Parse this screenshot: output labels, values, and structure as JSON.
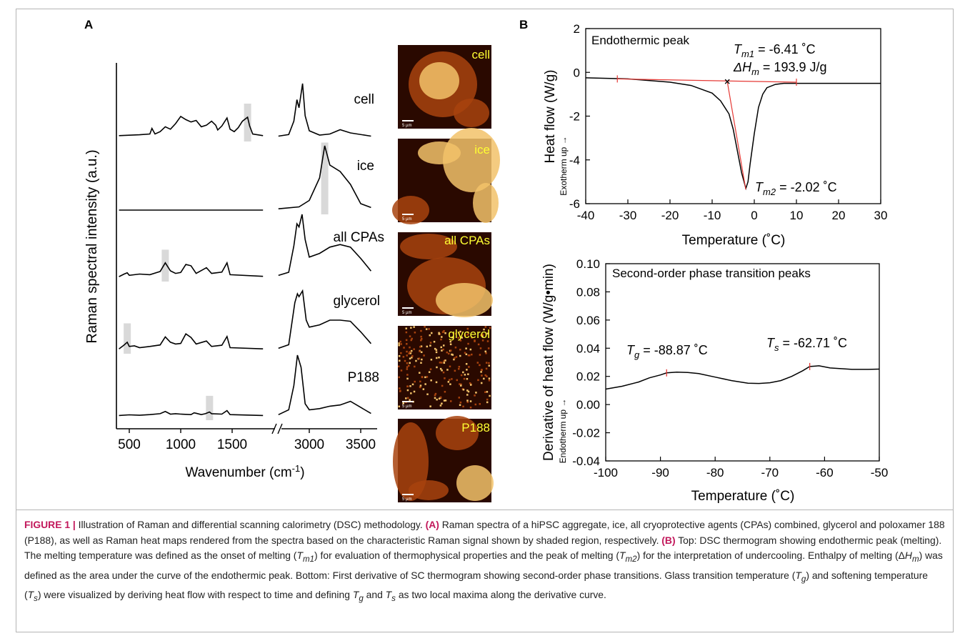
{
  "panel_a_label": "A",
  "panel_b_label": "B",
  "raman": {
    "ylabel": "Raman spectral intensity (a.u.)",
    "xlabel": "Wavenumber (cm",
    "xlabel_sup": "-1",
    "xlabel_close": ")",
    "ticks_left": [
      "500",
      "1000",
      "1500"
    ],
    "ticks_right": [
      "3000",
      "3500"
    ],
    "scale_bar_text": "5 µm",
    "heatmap_colors": {
      "dark": "#2a0900",
      "mid": "#a8430e",
      "bright": "#f2c26a",
      "label": "#ffff33"
    },
    "spectra": [
      {
        "label": "cell",
        "left": [
          [
            400,
            4
          ],
          [
            500,
            5
          ],
          [
            600,
            6
          ],
          [
            700,
            8
          ],
          [
            720,
            22
          ],
          [
            750,
            8
          ],
          [
            800,
            14
          ],
          [
            850,
            26
          ],
          [
            900,
            20
          ],
          [
            950,
            34
          ],
          [
            1000,
            52
          ],
          [
            1050,
            44
          ],
          [
            1100,
            38
          ],
          [
            1150,
            42
          ],
          [
            1200,
            26
          ],
          [
            1250,
            30
          ],
          [
            1300,
            40
          ],
          [
            1340,
            30
          ],
          [
            1360,
            18
          ],
          [
            1400,
            28
          ],
          [
            1450,
            48
          ],
          [
            1480,
            20
          ],
          [
            1520,
            14
          ],
          [
            1560,
            24
          ],
          [
            1600,
            40
          ],
          [
            1650,
            50
          ],
          [
            1670,
            28
          ],
          [
            1700,
            8
          ],
          [
            1800,
            4
          ]
        ],
        "right": [
          [
            2700,
            2
          ],
          [
            2800,
            5
          ],
          [
            2850,
            30
          ],
          [
            2880,
            70
          ],
          [
            2900,
            55
          ],
          [
            2935,
            100
          ],
          [
            2960,
            40
          ],
          [
            3000,
            12
          ],
          [
            3100,
            4
          ],
          [
            3200,
            6
          ],
          [
            3300,
            14
          ],
          [
            3400,
            8
          ],
          [
            3600,
            2
          ]
        ]
      },
      {
        "label": "ice",
        "left": [
          [
            400,
            2
          ],
          [
            1800,
            2
          ]
        ],
        "right": [
          [
            2700,
            2
          ],
          [
            2900,
            5
          ],
          [
            3000,
            15
          ],
          [
            3100,
            50
          ],
          [
            3150,
            100
          ],
          [
            3200,
            70
          ],
          [
            3300,
            60
          ],
          [
            3400,
            40
          ],
          [
            3500,
            10
          ],
          [
            3600,
            4
          ]
        ]
      },
      {
        "label": "all CPAs",
        "left": [
          [
            400,
            2
          ],
          [
            450,
            10
          ],
          [
            480,
            14
          ],
          [
            500,
            6
          ],
          [
            600,
            10
          ],
          [
            700,
            8
          ],
          [
            800,
            18
          ],
          [
            850,
            45
          ],
          [
            900,
            20
          ],
          [
            950,
            12
          ],
          [
            1000,
            15
          ],
          [
            1050,
            40
          ],
          [
            1100,
            36
          ],
          [
            1150,
            12
          ],
          [
            1250,
            30
          ],
          [
            1300,
            12
          ],
          [
            1400,
            16
          ],
          [
            1450,
            45
          ],
          [
            1480,
            8
          ],
          [
            1800,
            3
          ]
        ],
        "right": [
          [
            2700,
            3
          ],
          [
            2800,
            8
          ],
          [
            2850,
            50
          ],
          [
            2880,
            85
          ],
          [
            2900,
            80
          ],
          [
            2930,
            100
          ],
          [
            2960,
            60
          ],
          [
            3000,
            32
          ],
          [
            3100,
            38
          ],
          [
            3200,
            48
          ],
          [
            3300,
            52
          ],
          [
            3400,
            48
          ],
          [
            3500,
            30
          ],
          [
            3600,
            10
          ]
        ]
      },
      {
        "label": "glycerol",
        "left": [
          [
            400,
            2
          ],
          [
            450,
            15
          ],
          [
            480,
            24
          ],
          [
            500,
            10
          ],
          [
            550,
            12
          ],
          [
            600,
            6
          ],
          [
            700,
            10
          ],
          [
            800,
            15
          ],
          [
            850,
            42
          ],
          [
            900,
            24
          ],
          [
            950,
            18
          ],
          [
            1000,
            20
          ],
          [
            1050,
            52
          ],
          [
            1100,
            40
          ],
          [
            1150,
            18
          ],
          [
            1250,
            28
          ],
          [
            1300,
            10
          ],
          [
            1400,
            14
          ],
          [
            1450,
            43
          ],
          [
            1480,
            6
          ],
          [
            1800,
            2
          ]
        ],
        "right": [
          [
            2700,
            2
          ],
          [
            2800,
            8
          ],
          [
            2860,
            80
          ],
          [
            2885,
            95
          ],
          [
            2900,
            90
          ],
          [
            2935,
            100
          ],
          [
            2970,
            50
          ],
          [
            3000,
            38
          ],
          [
            3100,
            42
          ],
          [
            3200,
            50
          ],
          [
            3300,
            50
          ],
          [
            3400,
            48
          ],
          [
            3500,
            30
          ],
          [
            3600,
            10
          ]
        ]
      },
      {
        "label": "P188",
        "left": [
          [
            400,
            2
          ],
          [
            500,
            5
          ],
          [
            600,
            3
          ],
          [
            700,
            6
          ],
          [
            800,
            10
          ],
          [
            850,
            20
          ],
          [
            900,
            8
          ],
          [
            950,
            10
          ],
          [
            1000,
            8
          ],
          [
            1100,
            6
          ],
          [
            1130,
            14
          ],
          [
            1150,
            12
          ],
          [
            1200,
            6
          ],
          [
            1240,
            10
          ],
          [
            1280,
            18
          ],
          [
            1300,
            10
          ],
          [
            1400,
            8
          ],
          [
            1450,
            24
          ],
          [
            1480,
            6
          ],
          [
            1800,
            2
          ]
        ],
        "right": [
          [
            2700,
            2
          ],
          [
            2800,
            10
          ],
          [
            2850,
            50
          ],
          [
            2885,
            100
          ],
          [
            2920,
            80
          ],
          [
            2960,
            20
          ],
          [
            3000,
            10
          ],
          [
            3100,
            12
          ],
          [
            3200,
            16
          ],
          [
            3300,
            18
          ],
          [
            3400,
            24
          ],
          [
            3500,
            14
          ],
          [
            3600,
            4
          ]
        ]
      }
    ],
    "shaded_bands": [
      {
        "spectrum": 0,
        "segment": "left",
        "center": 1650
      },
      {
        "spectrum": 1,
        "segment": "right",
        "center": 3150
      },
      {
        "spectrum": 2,
        "segment": "left",
        "center": 850
      },
      {
        "spectrum": 3,
        "segment": "left",
        "center": 480
      },
      {
        "spectrum": 4,
        "segment": "left",
        "center": 1280
      }
    ]
  },
  "chart_data": [
    {
      "type": "line",
      "title": "Endothermic peak",
      "xlabel": "Temperature (˚C)",
      "ylabel": "Heat flow (W/g)",
      "ylabel_small": "Exotherm up →",
      "xlim": [
        -40,
        30
      ],
      "ylim": [
        -6,
        2
      ],
      "xticks": [
        -40,
        -30,
        -20,
        -10,
        0,
        10,
        20,
        30
      ],
      "yticks": [
        2,
        0,
        -2,
        -4,
        -6
      ],
      "series": [
        {
          "x": [
            -40,
            -30,
            -20,
            -15,
            -10,
            -8,
            -6,
            -5,
            -4,
            -3,
            -2,
            -1.5,
            -1,
            0,
            1,
            2,
            3,
            5,
            7,
            10,
            20,
            30
          ],
          "y": [
            -0.25,
            -0.3,
            -0.45,
            -0.6,
            -0.95,
            -1.3,
            -1.9,
            -2.6,
            -3.6,
            -4.6,
            -5.3,
            -5.0,
            -4.2,
            -2.8,
            -1.6,
            -1.0,
            -0.7,
            -0.55,
            -0.5,
            -0.5,
            -0.5,
            -0.5
          ]
        }
      ],
      "baseline": {
        "x": [
          -32.5,
          10
        ],
        "y": [
          -0.3,
          -0.45
        ]
      },
      "onset_lines": [
        {
          "x": [
            -6.41,
            -2.02
          ],
          "y": [
            -0.42,
            -5.35
          ]
        }
      ],
      "annotations": [
        {
          "x": -6.41,
          "y": -0.42,
          "text": "T",
          "sub": "m1",
          "rest": " = -6.41 ˚C"
        },
        {
          "text": "ΔH",
          "sub": "m",
          "rest": " = 193.9 J/g"
        },
        {
          "x": -2.02,
          "y": -5.35,
          "text": "T",
          "sub": "m2",
          "rest": " = -2.02 ˚C"
        }
      ]
    },
    {
      "type": "line",
      "title": "Second-order phase transition peaks",
      "xlabel": "Temperature (˚C)",
      "ylabel": "Derivative of heat flow (W/g•min)",
      "ylabel_small": "Endotherm up →",
      "xlim": [
        -100,
        -50
      ],
      "ylim": [
        -0.04,
        0.1
      ],
      "xticks": [
        -100,
        -90,
        -80,
        -70,
        -60,
        -50
      ],
      "yticks": [
        "0.10",
        "0.08",
        "0.06",
        "0.04",
        "0.02",
        "0.00",
        "-0.02",
        "-0.04"
      ],
      "series": [
        {
          "x": [
            -100,
            -97,
            -94,
            -92,
            -90,
            -88.87,
            -87,
            -85,
            -83,
            -80,
            -77,
            -74,
            -72,
            -70,
            -68,
            -66,
            -64,
            -62.71,
            -61,
            -59,
            -57,
            -55,
            -52,
            -50
          ],
          "y": [
            0.011,
            0.013,
            0.016,
            0.019,
            0.021,
            0.0225,
            0.023,
            0.0228,
            0.022,
            0.0195,
            0.017,
            0.0152,
            0.015,
            0.0155,
            0.017,
            0.02,
            0.024,
            0.027,
            0.0275,
            0.026,
            0.0255,
            0.025,
            0.025,
            0.0252
          ]
        }
      ],
      "annotations": [
        {
          "x": -88.87,
          "y": 0.0225,
          "text": "T",
          "sub": "g",
          "rest": " = -88.87 ˚C"
        },
        {
          "x": -62.71,
          "y": 0.027,
          "text": "T",
          "sub": "s",
          "rest": " = -62.71 ˚C"
        }
      ]
    }
  ],
  "caption": {
    "lead": "FIGURE 1 |",
    "t1": " Illustration of Raman and differential scanning calorimetry (DSC) methodology. ",
    "a": "(A)",
    "t2": " Raman spectra of a hiPSC aggregate, ice, all cryoprotective agents (CPAs) combined, glycerol and poloxamer 188 (P188), as well as Raman heat maps rendered from the spectra based on the characteristic Raman signal shown by shaded region, respectively. ",
    "b": "(B)",
    "t3": " Top: DSC thermogram showing endothermic peak (melting). The melting temperature was defined as the onset of melting (",
    "tm1": "T",
    "tm1_sub": "m1",
    "t4": ") for evaluation of thermophysical properties and the peak of melting (",
    "tm2": "T",
    "tm2_sub": "m2",
    "t5": ") for the interpretation of undercooling. Enthalpy of melting (Δ",
    "hm": "H",
    "hm_sub": "m",
    "t6": ") was defined as the area under the curve of the endothermic peak. Bottom: First derivative of SC thermogram showing second-order phase transitions. Glass transition temperature (",
    "tg": "T",
    "tg_sub": "g",
    "t7": ") and softening temperature (",
    "ts": "T",
    "ts_sub": "s",
    "t8": ") were visualized by deriving heat flow with respect to time and defining ",
    "tg2": "T",
    "tg2_sub": "g",
    "t9": " and ",
    "ts2": "T",
    "ts2_sub": "s",
    "t10": " as two local maxima along the derivative curve."
  }
}
